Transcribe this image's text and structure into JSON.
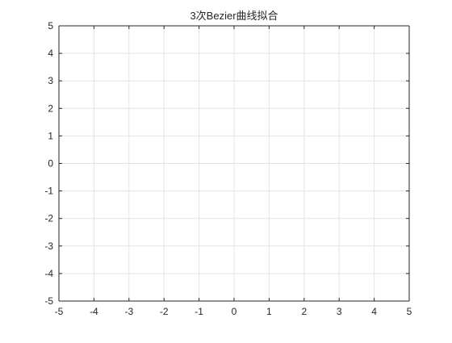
{
  "chart_data": {
    "type": "line",
    "title": "3次Bezier曲线拟合",
    "xlabel": "",
    "ylabel": "",
    "xlim": [
      -5,
      5
    ],
    "ylim": [
      -5,
      5
    ],
    "xticks": [
      -5,
      -4,
      -3,
      -2,
      -1,
      0,
      1,
      2,
      3,
      4,
      5
    ],
    "yticks": [
      -5,
      -4,
      -3,
      -2,
      -1,
      0,
      1,
      2,
      3,
      4,
      5
    ],
    "xtick_labels": [
      "-5",
      "-4",
      "-3",
      "-2",
      "-1",
      "0",
      "1",
      "2",
      "3",
      "4",
      "5"
    ],
    "ytick_labels": [
      "-5",
      "-4",
      "-3",
      "-2",
      "-1",
      "0",
      "1",
      "2",
      "3",
      "4",
      "5"
    ],
    "grid": true,
    "series": []
  },
  "colors": {
    "background": "#ffffff",
    "axes_face": "#ffffff",
    "grid": "#e3e3e3",
    "axis": "#262626",
    "text": "#262626"
  }
}
